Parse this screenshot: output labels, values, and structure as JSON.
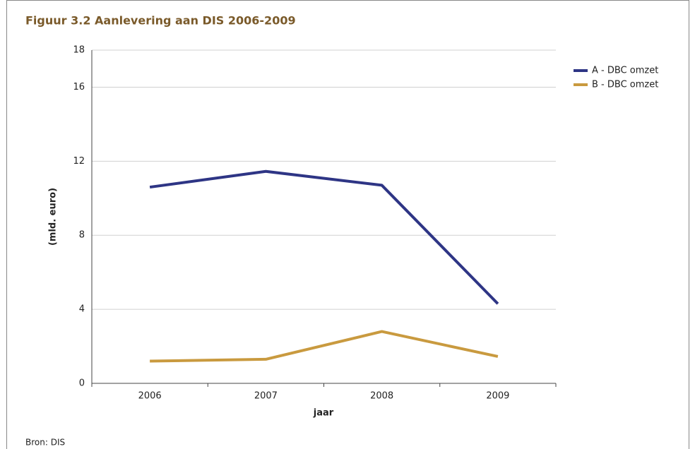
{
  "chart_data": {
    "type": "line",
    "title": "Figuur 3.2 Aanlevering aan DIS 2006-2009",
    "xlabel": "jaar",
    "ylabel": "(mld. euro)",
    "source": "Bron: DIS",
    "categories": [
      "2006",
      "2007",
      "2008",
      "2009"
    ],
    "series": [
      {
        "name": "A - DBC omzet",
        "color": "#2e3585",
        "values": [
          10.6,
          11.45,
          10.7,
          4.3
        ]
      },
      {
        "name": "B - DBC omzet",
        "color": "#c99a3f",
        "values": [
          1.2,
          1.3,
          2.8,
          1.45
        ]
      }
    ],
    "ylim": [
      0,
      18
    ],
    "yticks": [
      0,
      4,
      8,
      12,
      16,
      18
    ],
    "grid": true,
    "legend": "right"
  }
}
